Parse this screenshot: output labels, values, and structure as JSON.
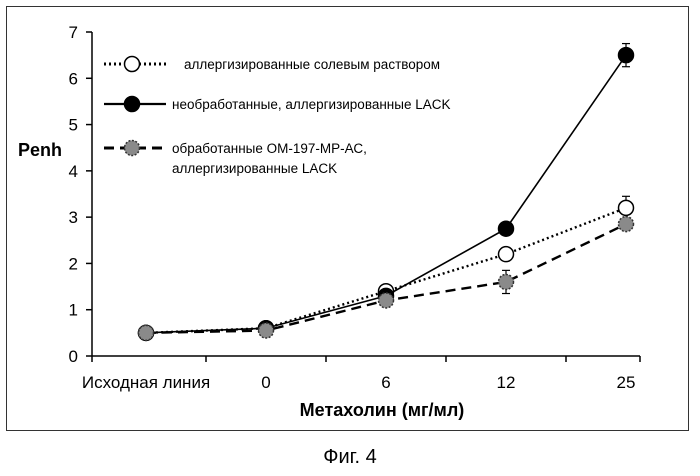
{
  "caption": "Фиг. 4",
  "chart_data": {
    "type": "line",
    "title": "",
    "xlabel": "Метахолин (мг/мл)",
    "ylabel": "Penh",
    "categories": [
      "Исходная линия",
      "0",
      "6",
      "12",
      "25"
    ],
    "ylim": [
      0,
      7
    ],
    "yticks": [
      0,
      1,
      2,
      3,
      4,
      5,
      6,
      7
    ],
    "grid": false,
    "legend_position": "top-left",
    "series": [
      {
        "name": "аллергизированные солевым раствором",
        "values": [
          0.5,
          0.6,
          1.4,
          2.2,
          3.2
        ],
        "errors": [
          0.05,
          0.05,
          0.05,
          0.1,
          0.25
        ],
        "line_style": "dotted",
        "marker": "open-circle",
        "color": "#000000"
      },
      {
        "name": "необработанные, аллергизированные LACK",
        "values": [
          0.5,
          0.6,
          1.3,
          2.75,
          6.5
        ],
        "errors": [
          0.05,
          0.05,
          0.05,
          0.1,
          0.25
        ],
        "line_style": "solid",
        "marker": "filled-circle",
        "color": "#000000"
      },
      {
        "name": "обработанные ОМ-197-МР-АС, аллергизированные LACK",
        "values": [
          0.5,
          0.55,
          1.2,
          1.6,
          2.85
        ],
        "errors": [
          0.05,
          0.05,
          0.05,
          0.25,
          0.1
        ],
        "line_style": "dashed",
        "marker": "gray-circle",
        "color": "#000000"
      }
    ]
  }
}
